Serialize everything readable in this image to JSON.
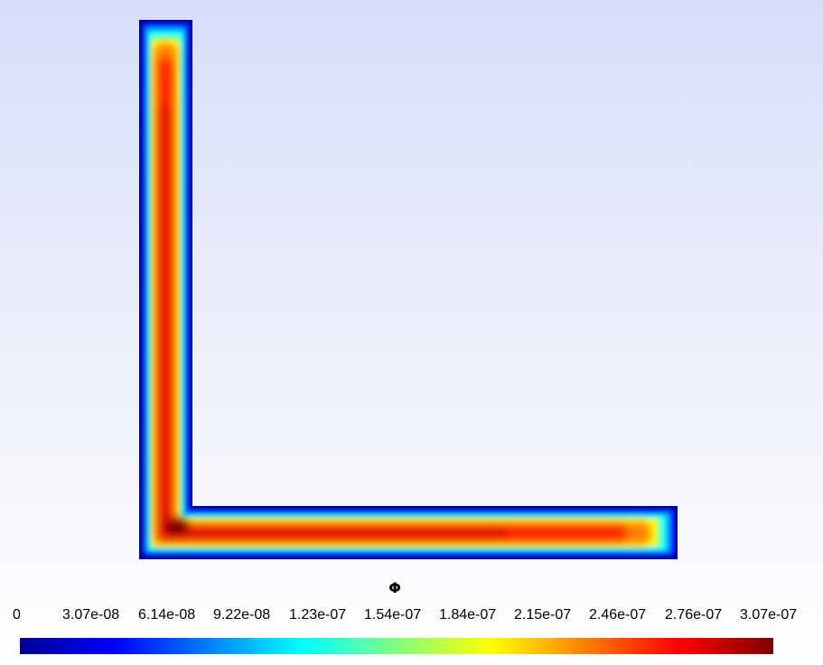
{
  "colorbar": {
    "title": "Φ",
    "ticks": [
      "0",
      "3.07e-08",
      "6.14e-08",
      "9.22e-08",
      "1.23e-07",
      "1.54e-07",
      "1.84e-07",
      "2.15e-07",
      "2.46e-07",
      "2.76e-07",
      "3.07e-07"
    ],
    "colormap": "jet",
    "range": [
      0,
      3.07e-07
    ]
  },
  "field": {
    "shape": "L-shaped domain",
    "boundary_color": "#00008f",
    "peak_value": 3.07e-07
  }
}
